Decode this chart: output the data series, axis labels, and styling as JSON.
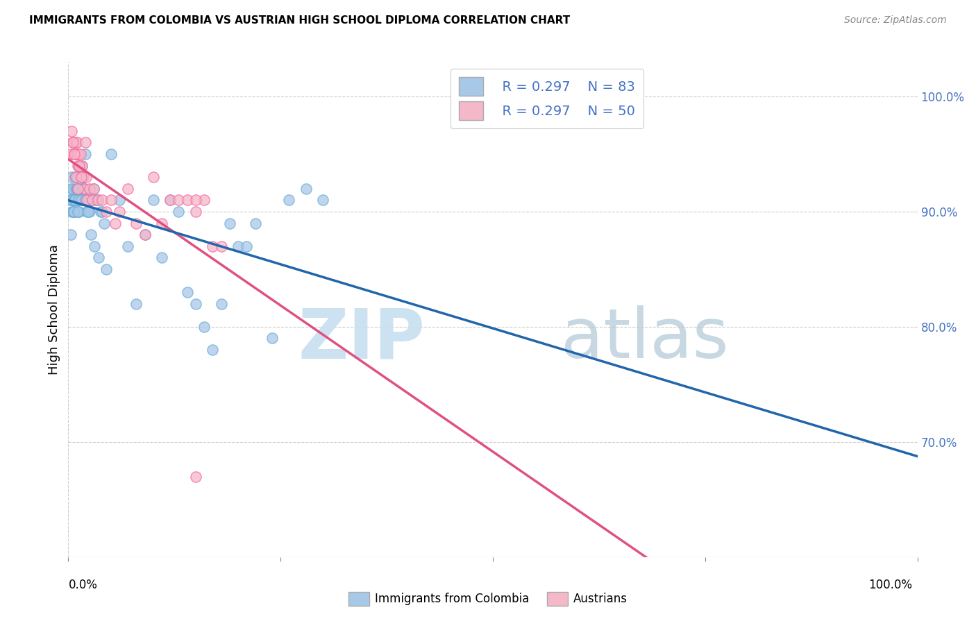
{
  "title": "IMMIGRANTS FROM COLOMBIA VS AUSTRIAN HIGH SCHOOL DIPLOMA CORRELATION CHART",
  "source": "Source: ZipAtlas.com",
  "ylabel": "High School Diploma",
  "right_ytick_vals": [
    70.0,
    80.0,
    90.0,
    100.0
  ],
  "right_ytick_labels": [
    "70.0%",
    "80.0%",
    "90.0%",
    "100.0%"
  ],
  "legend_r_blue": "R = 0.297",
  "legend_n_blue": "N = 83",
  "legend_r_pink": "R = 0.297",
  "legend_n_pink": "N = 50",
  "legend_label_blue": "Immigrants from Colombia",
  "legend_label_pink": "Austrians",
  "blue_dot_color": "#a8c8e8",
  "blue_dot_edge": "#6baed6",
  "pink_dot_color": "#f4b8c8",
  "pink_dot_edge": "#f768a1",
  "blue_line_color": "#2166ac",
  "pink_line_color": "#e05080",
  "dashed_line_color": "#aabbcc",
  "grid_color": "#cccccc",
  "right_tick_color": "#4472c4",
  "watermark_zip_color": "#c8dff0",
  "watermark_atlas_color": "#b0c8d8",
  "xlim": [
    0,
    100
  ],
  "ylim": [
    60,
    103
  ],
  "blue_x": [
    0.2,
    0.3,
    0.3,
    0.4,
    0.4,
    0.5,
    0.5,
    0.5,
    0.6,
    0.6,
    0.7,
    0.7,
    0.8,
    0.8,
    0.9,
    0.9,
    1.0,
    1.0,
    1.0,
    1.1,
    1.1,
    1.2,
    1.2,
    1.3,
    1.3,
    1.4,
    1.5,
    1.5,
    1.6,
    1.7,
    1.8,
    1.9,
    2.0,
    2.1,
    2.2,
    2.3,
    2.5,
    2.6,
    2.8,
    3.0,
    3.2,
    3.5,
    3.8,
    4.0,
    4.2,
    5.0,
    6.0,
    7.0,
    8.0,
    9.0,
    10.0,
    11.0,
    12.0,
    13.0,
    14.0,
    15.0,
    16.0,
    17.0,
    18.0,
    19.0,
    20.0,
    21.0,
    22.0,
    24.0,
    26.0,
    28.0,
    30.0,
    0.3,
    0.4,
    0.6,
    0.7,
    0.8,
    1.0,
    1.1,
    1.2,
    1.5,
    1.7,
    2.0,
    2.3,
    2.7,
    3.1,
    3.6,
    4.5
  ],
  "blue_y": [
    91,
    91,
    92,
    90,
    93,
    91,
    90,
    92,
    91,
    90,
    91,
    90,
    91,
    93,
    92,
    91,
    91,
    92,
    93,
    91,
    90,
    92,
    91,
    90,
    91,
    92,
    91,
    93,
    94,
    92,
    91,
    92,
    95,
    91,
    90,
    91,
    90,
    91,
    91,
    92,
    91,
    91,
    90,
    90,
    89,
    95,
    91,
    87,
    82,
    88,
    91,
    86,
    91,
    90,
    83,
    82,
    80,
    78,
    82,
    89,
    87,
    87,
    89,
    79,
    91,
    92,
    91,
    88,
    91,
    90,
    91,
    91,
    92,
    90,
    91,
    91,
    92,
    91,
    90,
    88,
    87,
    86,
    85
  ],
  "pink_x": [
    0.3,
    0.4,
    0.5,
    0.6,
    0.7,
    0.8,
    0.9,
    1.0,
    1.0,
    1.1,
    1.2,
    1.3,
    1.4,
    1.5,
    1.6,
    1.7,
    1.8,
    1.9,
    2.0,
    2.1,
    2.2,
    2.5,
    2.8,
    3.0,
    3.5,
    4.0,
    4.5,
    5.0,
    5.5,
    6.0,
    7.0,
    8.0,
    9.0,
    10.0,
    11.0,
    12.0,
    13.0,
    14.0,
    15.0,
    16.0,
    17.0,
    18.0,
    0.5,
    0.7,
    0.9,
    1.1,
    1.3,
    1.5,
    15.0,
    15.0
  ],
  "pink_y": [
    95,
    97,
    96,
    96,
    95,
    95,
    96,
    96,
    95,
    94,
    95,
    94,
    95,
    93,
    94,
    93,
    93,
    92,
    96,
    93,
    91,
    92,
    91,
    92,
    91,
    91,
    90,
    91,
    89,
    90,
    92,
    89,
    88,
    93,
    89,
    91,
    91,
    91,
    90,
    91,
    87,
    87,
    96,
    95,
    93,
    92,
    94,
    93,
    91,
    67
  ],
  "blue_line_slope": 0.08,
  "blue_line_intercept": 89.5,
  "pink_line_slope": 0.12,
  "pink_line_intercept": 93.5,
  "dashed_line_slope": 0.08,
  "dashed_line_intercept": 89.5
}
